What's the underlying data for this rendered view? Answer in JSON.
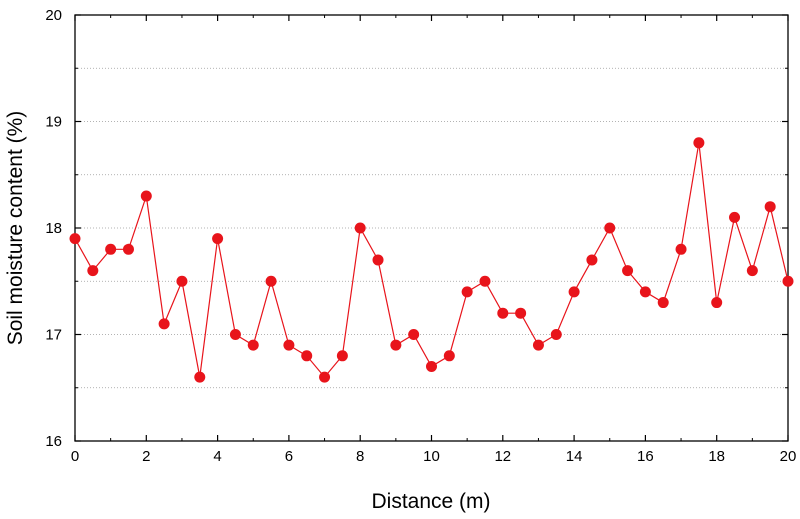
{
  "chart_data": {
    "type": "line",
    "title": "",
    "xlabel": "Distance (m)",
    "ylabel": "Soil moisture content (%)",
    "xlim": [
      0,
      20
    ],
    "ylim": [
      16,
      20
    ],
    "x_ticks": [
      0,
      2,
      4,
      6,
      8,
      10,
      12,
      14,
      16,
      18,
      20
    ],
    "y_ticks": [
      16,
      17,
      18,
      19,
      20
    ],
    "grid": "horizontal dotted",
    "legend": "none",
    "series": [
      {
        "color": "#e8141b",
        "marker": "circle",
        "x": [
          0,
          0.5,
          1,
          1.5,
          2,
          2.5,
          3,
          3.5,
          4,
          4.5,
          5,
          5.5,
          6,
          6.5,
          7,
          7.5,
          8,
          8.5,
          9,
          9.5,
          10,
          10.5,
          11,
          11.5,
          12,
          12.5,
          13,
          13.5,
          14,
          14.5,
          15,
          15.5,
          16,
          16.5,
          17,
          17.5,
          18,
          18.5,
          19,
          19.5,
          20
        ],
        "y": [
          17.9,
          17.6,
          17.8,
          17.8,
          18.3,
          17.1,
          17.5,
          16.6,
          17.9,
          17.0,
          16.9,
          17.5,
          16.9,
          16.8,
          16.6,
          16.8,
          18.0,
          17.7,
          16.9,
          17.0,
          16.7,
          16.8,
          17.4,
          17.5,
          17.2,
          17.2,
          16.9,
          17.0,
          17.4,
          17.7,
          18.0,
          17.6,
          17.4,
          17.3,
          17.8,
          18.8,
          17.3,
          18.1,
          17.6,
          18.2,
          17.5
        ]
      }
    ]
  }
}
